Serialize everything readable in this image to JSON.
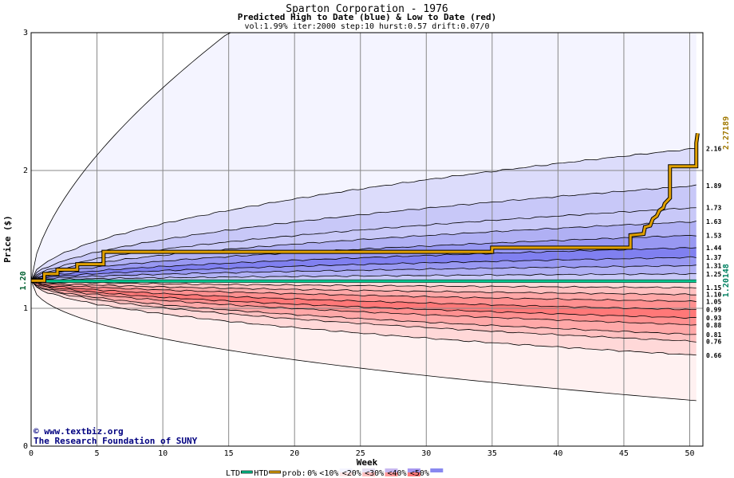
{
  "chart_data": {
    "type": "area",
    "title": "Sparton Corporation - 1976",
    "subtitle": "Predicted High to Date (blue) &  Low to Date (red)",
    "params": "vol:1.99% iter:2000 step:10 hurst:0.57 drift:0.07/0",
    "xlabel": "Week",
    "ylabel": "Price ($)",
    "xlim": [
      0,
      51
    ],
    "ylim": [
      0,
      3
    ],
    "x_ticks": [
      "0",
      "5",
      "10",
      "15",
      "20",
      "25",
      "30",
      "35",
      "40",
      "45",
      "50"
    ],
    "y_ticks": [
      "0",
      "1",
      "2",
      "3"
    ],
    "start_price": 1.2,
    "start_price_label": "1.20",
    "last_high": 2.27189,
    "last_high_label": "2.27189",
    "last_low": 1.20148,
    "last_low_label": "1.20148",
    "band_end_labels": [
      "2.16",
      "1.89",
      "1.73",
      "1.63",
      "1.53",
      "1.44",
      "1.37",
      "1.31",
      "1.25",
      "1.15",
      "1.10",
      "1.05",
      "0.99",
      "0.93",
      "0.88",
      "0.81",
      "0.76",
      "0.66"
    ],
    "high_quantiles_end": [
      2.16,
      1.89,
      1.73,
      1.63,
      1.53,
      1.44,
      1.37,
      1.31,
      1.25
    ],
    "low_quantiles_end": [
      1.15,
      1.1,
      1.05,
      0.99,
      0.93,
      0.88,
      0.81,
      0.76,
      0.66
    ],
    "high_upper_envelope_15": 3.0,
    "low_lower_envelope_end": 0.33,
    "htd_series": {
      "name": "HTD",
      "x": [
        0,
        1,
        1,
        2,
        2,
        3.5,
        3.5,
        5.5,
        5.5,
        35,
        35,
        45.5,
        45.5,
        46.5,
        46.6,
        47,
        47.2,
        47.5,
        47.7,
        48,
        48.1,
        48.5,
        48.5,
        50.5,
        50.5,
        50.6
      ],
      "y": [
        1.2,
        1.2,
        1.25,
        1.25,
        1.28,
        1.28,
        1.32,
        1.32,
        1.41,
        1.41,
        1.44,
        1.44,
        1.53,
        1.54,
        1.59,
        1.6,
        1.65,
        1.67,
        1.71,
        1.73,
        1.76,
        1.8,
        2.03,
        2.03,
        2.2,
        2.27
      ]
    },
    "ltd_series": {
      "name": "LTD",
      "value": 1.2
    },
    "legend": {
      "ltd": "LTD",
      "htd": "HTD",
      "prob_prefix": "prob:",
      "items": [
        "0%",
        "<10%",
        "<20%",
        "<30%",
        "<40%",
        "<50%"
      ]
    },
    "grid": true
  },
  "credit": {
    "site": "www.textbiz.org",
    "org": "The Research Foundation of SUNY"
  },
  "colors": {
    "htd_line": "#e0a000",
    "ltd_line": "#00c890",
    "grid": "#888888",
    "blue_bands": [
      "#f4f4ff",
      "#dcdcfb",
      "#c8c8f8",
      "#b0b0f4",
      "#9898f2",
      "#8080f0"
    ],
    "red_bands": [
      "#fff1f1",
      "#ffd8d8",
      "#ffc0c0",
      "#ffa8a8",
      "#ff9090",
      "#ff7878"
    ],
    "legend_swatches": [
      "#ffffff",
      "#f4f4ff",
      "#ffe6e6",
      "#e6e0f4",
      "#ffc0c0",
      "#c8b8f0",
      "#ff9a9a",
      "#a898f0",
      "#ff7878",
      "#8888f0"
    ]
  }
}
